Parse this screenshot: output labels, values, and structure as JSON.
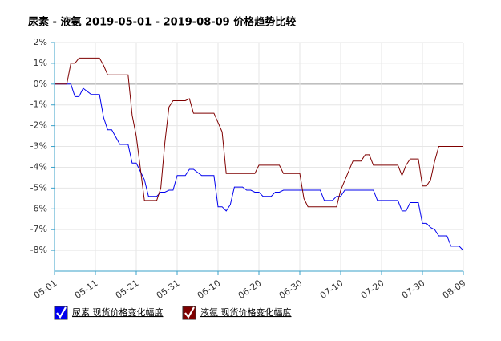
{
  "chart_data": {
    "type": "line",
    "title": "尿素 - 液氨 2019-05-01 - 2019-08-09 价格趋势比较",
    "xlim": [
      "05-01",
      "08-09"
    ],
    "xticks": [
      "05-01",
      "05-11",
      "05-21",
      "05-31",
      "06-10",
      "06-20",
      "06-30",
      "07-10",
      "07-20",
      "07-30",
      "08-09"
    ],
    "ylim": [
      -9,
      2
    ],
    "yticks": [
      {
        "value": -8,
        "label": "-8%"
      },
      {
        "value": -7,
        "label": "-7%"
      },
      {
        "value": -6,
        "label": "-6%"
      },
      {
        "value": -5,
        "label": "-5%"
      },
      {
        "value": -4,
        "label": "-4%"
      },
      {
        "value": -3,
        "label": "-3%"
      },
      {
        "value": -2,
        "label": "-2%"
      },
      {
        "value": -1,
        "label": "-1%"
      },
      {
        "value": 0,
        "label": "0%"
      },
      {
        "value": 1,
        "label": "1%"
      },
      {
        "value": 2,
        "label": "2%"
      }
    ],
    "grid": true,
    "series": [
      {
        "name": "尿素 现货价格变化幅度",
        "color": "#0000ee",
        "x": [
          "05-01",
          "05-05",
          "05-06",
          "05-07",
          "05-08",
          "05-10",
          "05-12",
          "05-13",
          "05-14",
          "05-15",
          "05-17",
          "05-19",
          "05-20",
          "05-21",
          "05-23",
          "05-24",
          "05-26",
          "05-27",
          "05-28",
          "05-29",
          "05-30",
          "05-31",
          "06-02",
          "06-03",
          "06-04",
          "06-06",
          "06-09",
          "06-10",
          "06-11",
          "06-12",
          "06-13",
          "06-14",
          "06-16",
          "06-17",
          "06-18",
          "06-19",
          "06-20",
          "06-21",
          "06-23",
          "06-24",
          "06-25",
          "06-26",
          "07-05",
          "07-06",
          "07-08",
          "07-09",
          "07-10",
          "07-11",
          "07-18",
          "07-19",
          "07-24",
          "07-25",
          "07-26",
          "07-27",
          "07-29",
          "07-30",
          "07-31",
          "08-01",
          "08-02",
          "08-03",
          "08-05",
          "08-06",
          "08-08",
          "08-09"
        ],
        "values": [
          0,
          0,
          -0.6,
          -0.6,
          -0.2,
          -0.5,
          -0.5,
          -1.6,
          -2.2,
          -2.2,
          -2.9,
          -2.9,
          -3.8,
          -3.8,
          -4.6,
          -5.4,
          -5.4,
          -5.2,
          -5.2,
          -5.1,
          -5.1,
          -4.4,
          -4.4,
          -4.1,
          -4.1,
          -4.4,
          -4.4,
          -5.9,
          -5.9,
          -6.1,
          -5.8,
          -4.95,
          -4.95,
          -5.1,
          -5.1,
          -5.2,
          -5.2,
          -5.4,
          -5.4,
          -5.2,
          -5.2,
          -5.1,
          -5.1,
          -5.6,
          -5.6,
          -5.4,
          -5.4,
          -5.1,
          -5.1,
          -5.6,
          -5.6,
          -6.1,
          -6.1,
          -5.7,
          -5.7,
          -6.7,
          -6.7,
          -6.9,
          -7,
          -7.3,
          -7.3,
          -7.8,
          -7.8,
          -8
        ]
      },
      {
        "name": "液氨 现货价格变化幅度",
        "color": "#7f0000",
        "x": [
          "05-01",
          "05-04",
          "05-05",
          "05-06",
          "05-07",
          "05-12",
          "05-13",
          "05-14",
          "05-19",
          "05-20",
          "05-21",
          "05-23",
          "05-26",
          "05-27",
          "05-28",
          "05-29",
          "05-30",
          "06-02",
          "06-03",
          "06-04",
          "06-09",
          "06-11",
          "06-12",
          "06-19",
          "06-20",
          "06-25",
          "06-26",
          "06-30",
          "07-01",
          "07-02",
          "07-09",
          "07-10",
          "07-13",
          "07-15",
          "07-16",
          "07-17",
          "07-18",
          "07-24",
          "07-25",
          "07-26",
          "07-27",
          "07-29",
          "07-30",
          "07-31",
          "08-01",
          "08-02",
          "08-03",
          "08-09"
        ],
        "values": [
          0,
          0,
          1,
          1,
          1.25,
          1.25,
          0.9,
          0.45,
          0.45,
          -1.5,
          -2.5,
          -5.6,
          -5.6,
          -5,
          -2.8,
          -1.1,
          -0.8,
          -0.8,
          -0.7,
          -1.4,
          -1.4,
          -2.3,
          -4.3,
          -4.3,
          -3.9,
          -3.9,
          -4.3,
          -4.3,
          -5.5,
          -5.9,
          -5.9,
          -5.1,
          -3.7,
          -3.7,
          -3.4,
          -3.4,
          -3.9,
          -3.9,
          -4.4,
          -3.9,
          -3.6,
          -3.6,
          -4.9,
          -4.9,
          -4.6,
          -3.7,
          -3,
          -3
        ]
      }
    ]
  }
}
